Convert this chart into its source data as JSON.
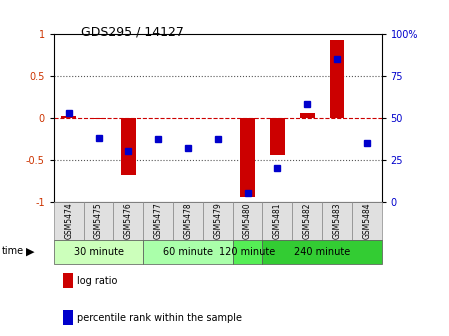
{
  "title": "GDS295 / 14127",
  "samples": [
    "GSM5474",
    "GSM5475",
    "GSM5476",
    "GSM5477",
    "GSM5478",
    "GSM5479",
    "GSM5480",
    "GSM5481",
    "GSM5482",
    "GSM5483",
    "GSM5484"
  ],
  "log_ratio": [
    0.02,
    -0.02,
    -0.68,
    -0.01,
    -0.01,
    -0.01,
    -0.95,
    -0.45,
    0.05,
    0.92,
    -0.01
  ],
  "percentile_rank": [
    53,
    38,
    30,
    37,
    32,
    37,
    5,
    20,
    58,
    85,
    35
  ],
  "group_info": [
    {
      "label": "30 minute",
      "start": 0,
      "end": 2,
      "color": "#ccffbb"
    },
    {
      "label": "60 minute",
      "start": 3,
      "end": 5,
      "color": "#aaffaa"
    },
    {
      "label": "120 minute",
      "start": 6,
      "end": 6,
      "color": "#55ee55"
    },
    {
      "label": "240 minute",
      "start": 7,
      "end": 10,
      "color": "#33cc33"
    }
  ],
  "ylim_left": [
    -1,
    1
  ],
  "yticks_left": [
    -1,
    -0.5,
    0,
    0.5,
    1
  ],
  "ytick_labels_left": [
    "-1",
    "-0.5",
    "0",
    "0.5",
    "1"
  ],
  "ylim_right": [
    0,
    100
  ],
  "yticks_right": [
    0,
    25,
    50,
    75,
    100
  ],
  "ytick_labels_right": [
    "0",
    "25",
    "50",
    "75",
    "100%"
  ],
  "bar_color": "#cc0000",
  "dot_color": "#0000cc",
  "zero_line_color": "#cc0000",
  "dotted_line_color": "#555555",
  "background_color": "#ffffff",
  "legend_log_ratio": "log ratio",
  "legend_percentile": "percentile rank within the sample"
}
